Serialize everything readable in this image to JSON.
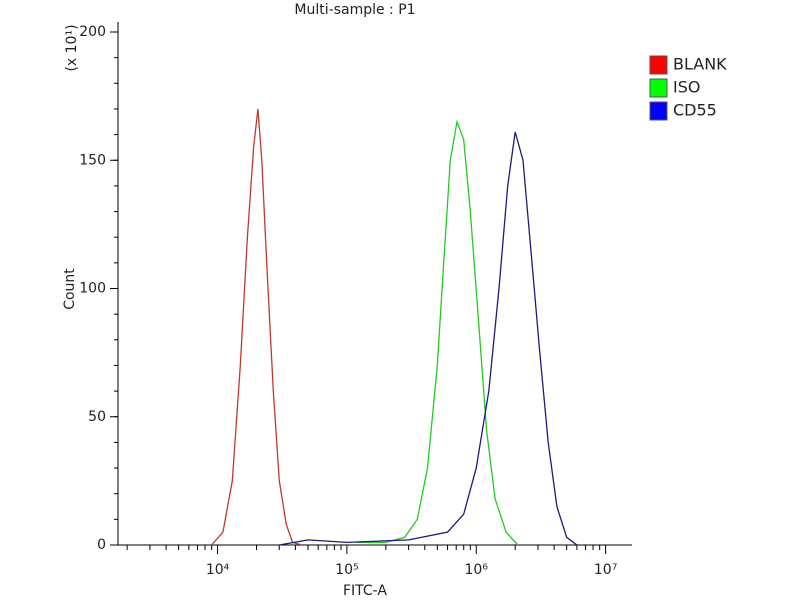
{
  "chart_data": {
    "type": "line",
    "title": "Multi-sample : P1",
    "x_label": "FITC-A",
    "y_label": "Count",
    "y_multiplier": "(x 10¹)",
    "log_x": true,
    "legend": "right",
    "xlim": [
      1700,
      16000000
    ],
    "ylim": [
      0,
      200
    ],
    "xticks": [
      {
        "value": 10000,
        "label": "10⁴"
      },
      {
        "value": 100000,
        "label": "10⁵"
      },
      {
        "value": 1000000,
        "label": "10⁶"
      },
      {
        "value": 10000000,
        "label": "10⁷"
      }
    ],
    "yticks": [
      0,
      50,
      100,
      150,
      200
    ],
    "series": [
      {
        "name": "BLANK",
        "color": "#c0392b",
        "legend_color": "#ff0000",
        "x": [
          9000,
          11000,
          13000,
          15000,
          17000,
          19000,
          20500,
          22000,
          24000,
          27000,
          30000,
          34000,
          38000,
          45000
        ],
        "values": [
          0,
          5,
          25,
          70,
          120,
          155,
          170,
          150,
          110,
          60,
          25,
          8,
          1,
          0
        ]
      },
      {
        "name": "ISO",
        "color": "#22cc22",
        "legend_color": "#00ff00",
        "x": [
          120000,
          200000,
          280000,
          350000,
          420000,
          500000,
          560000,
          630000,
          710000,
          800000,
          900000,
          1050000,
          1200000,
          1400000,
          1700000,
          2100000
        ],
        "values": [
          1,
          1,
          3,
          10,
          30,
          70,
          110,
          150,
          165,
          158,
          130,
          85,
          45,
          18,
          5,
          0
        ]
      },
      {
        "name": "CD55",
        "color": "#1a1a80",
        "legend_color": "#0000ff",
        "x": [
          30000,
          50000,
          100000,
          300000,
          600000,
          800000,
          1000000,
          1250000,
          1500000,
          1750000,
          2000000,
          2300000,
          2700000,
          3100000,
          3600000,
          4200000,
          5000000,
          6000000
        ],
        "values": [
          0,
          2,
          1,
          2,
          5,
          12,
          30,
          60,
          100,
          140,
          161,
          150,
          110,
          75,
          40,
          15,
          3,
          0
        ]
      }
    ]
  }
}
